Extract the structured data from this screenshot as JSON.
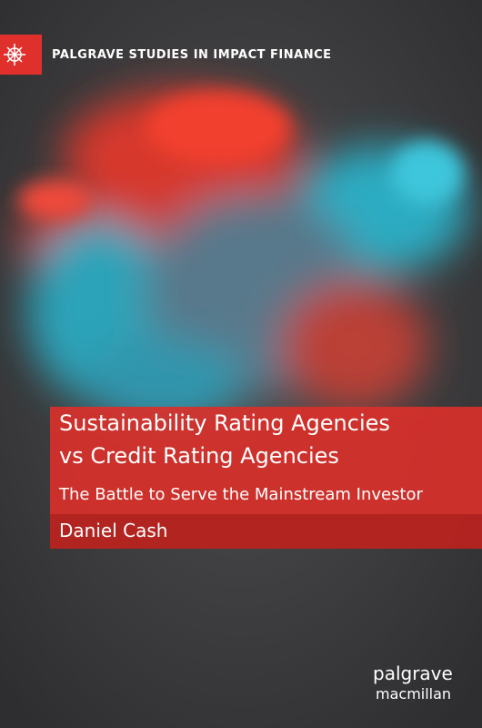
{
  "series": "PALGRAVE STUDIES IN IMPACT FINANCE",
  "title": [
    "Sustainability Rating Agencies",
    "vs Credit Rating Agencies"
  ],
  "subtitle": "The Battle to Serve the Mainstream Investor",
  "author": "Daniel Cash",
  "publisher": [
    "palgrave",
    "macmillan"
  ]
}
